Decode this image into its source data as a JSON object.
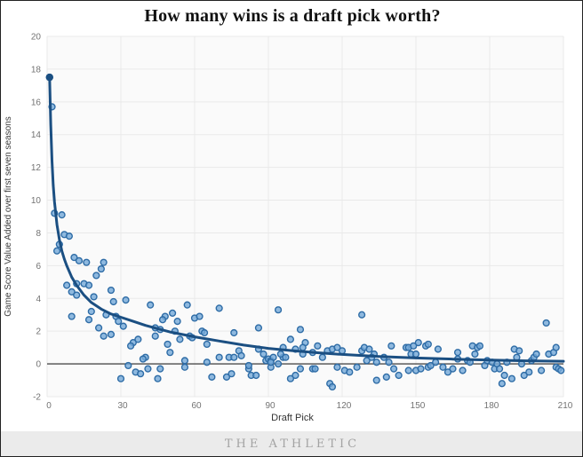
{
  "page": {
    "footer_brand": "THE ATHLETIC",
    "footer_band_color": "#ebebeb",
    "footer_text_color": "#a3a3a3"
  },
  "chart_data": {
    "type": "scatter",
    "title": "How many wins is a draft pick worth?",
    "xlabel": "Draft Pick",
    "ylabel": "Game Score Value Added over first seven seasons",
    "xlim": [
      0,
      210
    ],
    "ylim": [
      -2,
      20
    ],
    "x_ticks": [
      0,
      30,
      60,
      90,
      120,
      150,
      180,
      210
    ],
    "y_ticks": [
      20,
      18,
      16,
      14,
      12,
      10,
      8,
      6,
      4,
      2,
      0,
      -2
    ],
    "grid": true,
    "legend": "none",
    "zero_line": 0,
    "colors": {
      "point_fill": "#74a9d8",
      "point_stroke": "#2e6ca6",
      "trend": "#1b4f82",
      "zero_line": "#4d4d4d",
      "grid": "#e9e9e9",
      "plot_bg": "#fafafa",
      "tick_label": "#737373"
    },
    "points": [
      [
        1,
        17.5
      ],
      [
        2,
        15.7
      ],
      [
        3,
        9.2
      ],
      [
        6,
        9.1
      ],
      [
        7,
        7.9
      ],
      [
        9,
        7.8
      ],
      [
        5,
        7.3
      ],
      [
        4,
        6.9
      ],
      [
        11,
        6.5
      ],
      [
        13,
        6.3
      ],
      [
        16,
        6.2
      ],
      [
        23,
        6.2
      ],
      [
        22,
        5.8
      ],
      [
        20,
        5.4
      ],
      [
        12,
        4.9
      ],
      [
        8,
        4.8
      ],
      [
        15,
        4.9
      ],
      [
        17,
        4.8
      ],
      [
        10,
        4.4
      ],
      [
        12,
        4.2
      ],
      [
        19,
        4.1
      ],
      [
        26,
        4.5
      ],
      [
        32,
        3.9
      ],
      [
        27,
        3.8
      ],
      [
        18,
        3.2
      ],
      [
        28,
        2.9
      ],
      [
        29,
        2.6
      ],
      [
        10,
        2.9
      ],
      [
        17,
        2.7
      ],
      [
        24,
        3.0
      ],
      [
        31,
        2.3
      ],
      [
        21,
        2.2
      ],
      [
        23,
        1.7
      ],
      [
        26,
        1.8
      ],
      [
        35,
        1.3
      ],
      [
        37,
        1.5
      ],
      [
        34,
        1.1
      ],
      [
        40,
        0.4
      ],
      [
        33,
        -0.1
      ],
      [
        36,
        -0.5
      ],
      [
        38,
        -0.6
      ],
      [
        30,
        -0.9
      ],
      [
        42,
        3.6
      ],
      [
        44,
        1.7
      ],
      [
        48,
        2.9
      ],
      [
        51,
        3.1
      ],
      [
        47,
        2.7
      ],
      [
        53,
        2.6
      ],
      [
        57,
        3.6
      ],
      [
        60,
        2.8
      ],
      [
        62,
        2.9
      ],
      [
        44,
        2.2
      ],
      [
        46,
        2.1
      ],
      [
        52,
        2.0
      ],
      [
        54,
        1.5
      ],
      [
        58,
        1.7
      ],
      [
        59,
        1.6
      ],
      [
        63,
        2.0
      ],
      [
        64,
        1.9
      ],
      [
        65,
        1.2
      ],
      [
        50,
        0.7
      ],
      [
        49,
        1.2
      ],
      [
        39,
        0.3
      ],
      [
        41,
        -0.3
      ],
      [
        46,
        -0.3
      ],
      [
        45,
        -0.9
      ],
      [
        56,
        0.2
      ],
      [
        56,
        -0.2
      ],
      [
        67,
        -0.8
      ],
      [
        65,
        0.1
      ],
      [
        70,
        3.4
      ],
      [
        70,
        0.4
      ],
      [
        73,
        -0.8
      ],
      [
        74,
        0.4
      ],
      [
        75,
        -0.6
      ],
      [
        76,
        0.4
      ],
      [
        76,
        1.9
      ],
      [
        78,
        0.8
      ],
      [
        79,
        0.5
      ],
      [
        82,
        -0.3
      ],
      [
        83,
        -0.7
      ],
      [
        85,
        -0.7
      ],
      [
        86,
        0.9
      ],
      [
        88,
        0.6
      ],
      [
        82,
        -0.1
      ],
      [
        86,
        2.2
      ],
      [
        89,
        0.2
      ],
      [
        90,
        0.3
      ],
      [
        91,
        0.2
      ],
      [
        91,
        -0.2
      ],
      [
        94,
        3.3
      ],
      [
        96,
        0.4
      ],
      [
        103,
        2.1
      ],
      [
        128,
        3.0
      ],
      [
        99,
        1.5
      ],
      [
        105,
        1.3
      ],
      [
        104,
        1.0
      ],
      [
        96,
        1.0
      ],
      [
        101,
        0.9
      ],
      [
        110,
        1.1
      ],
      [
        108,
        0.7
      ],
      [
        104,
        0.6
      ],
      [
        95,
        0.6
      ],
      [
        92,
        0.4
      ],
      [
        97,
        0.4
      ],
      [
        91,
        0.1
      ],
      [
        94,
        0.0
      ],
      [
        103,
        -0.3
      ],
      [
        101,
        -0.7
      ],
      [
        99,
        -0.9
      ],
      [
        108,
        -0.3
      ],
      [
        109,
        -0.3
      ],
      [
        112,
        0.4
      ],
      [
        114,
        0.8
      ],
      [
        116,
        0.9
      ],
      [
        118,
        1.0
      ],
      [
        120,
        0.8
      ],
      [
        118,
        -0.2
      ],
      [
        115,
        -1.2
      ],
      [
        116,
        -1.4
      ],
      [
        121,
        -0.4
      ],
      [
        123,
        -0.5
      ],
      [
        126,
        -0.2
      ],
      [
        128,
        0.8
      ],
      [
        129,
        1.0
      ],
      [
        131,
        0.9
      ],
      [
        133,
        0.6
      ],
      [
        132,
        0.4
      ],
      [
        130,
        0.2
      ],
      [
        134,
        0.1
      ],
      [
        137,
        0.4
      ],
      [
        140,
        1.1
      ],
      [
        139,
        0.1
      ],
      [
        141,
        -0.3
      ],
      [
        138,
        -0.8
      ],
      [
        134,
        -1.0
      ],
      [
        143,
        -0.7
      ],
      [
        146,
        1.0
      ],
      [
        147,
        1.0
      ],
      [
        148,
        0.6
      ],
      [
        150,
        -0.4
      ],
      [
        149,
        1.1
      ],
      [
        151,
        1.3
      ],
      [
        154,
        1.1
      ],
      [
        155,
        1.2
      ],
      [
        159,
        0.9
      ],
      [
        150,
        0.6
      ],
      [
        147,
        -0.4
      ],
      [
        152,
        -0.3
      ],
      [
        155,
        -0.2
      ],
      [
        156,
        -0.1
      ],
      [
        158,
        0.1
      ],
      [
        161,
        -0.2
      ],
      [
        163,
        -0.5
      ],
      [
        165,
        -0.3
      ],
      [
        167,
        0.7
      ],
      [
        167,
        0.3
      ],
      [
        169,
        -0.4
      ],
      [
        171,
        0.2
      ],
      [
        172,
        0.1
      ],
      [
        173,
        1.1
      ],
      [
        175,
        1.0
      ],
      [
        176,
        1.1
      ],
      [
        174,
        0.6
      ],
      [
        178,
        -0.1
      ],
      [
        179,
        0.2
      ],
      [
        181,
        0.1
      ],
      [
        182,
        -0.3
      ],
      [
        183,
        0.0
      ],
      [
        184,
        -0.3
      ],
      [
        185,
        -1.2
      ],
      [
        186,
        -0.7
      ],
      [
        187,
        0.1
      ],
      [
        189,
        -0.9
      ],
      [
        190,
        0.9
      ],
      [
        192,
        0.8
      ],
      [
        191,
        0.4
      ],
      [
        193,
        0.0
      ],
      [
        194,
        -0.7
      ],
      [
        196,
        -0.5
      ],
      [
        197,
        0.2
      ],
      [
        198,
        0.4
      ],
      [
        199,
        0.6
      ],
      [
        201,
        -0.4
      ],
      [
        203,
        2.5
      ],
      [
        204,
        0.6
      ],
      [
        206,
        0.7
      ],
      [
        207,
        1.0
      ],
      [
        207,
        -0.2
      ],
      [
        208,
        -0.3
      ],
      [
        209,
        -0.4
      ]
    ],
    "trend": [
      [
        1,
        17.5
      ],
      [
        1.5,
        14.6
      ],
      [
        2,
        12.4
      ],
      [
        2.5,
        10.9
      ],
      [
        3,
        9.9
      ],
      [
        4,
        8.5
      ],
      [
        5,
        7.6
      ],
      [
        6,
        6.9
      ],
      [
        7,
        6.4
      ],
      [
        8,
        6.0
      ],
      [
        10,
        5.3
      ],
      [
        12,
        4.8
      ],
      [
        15,
        4.2
      ],
      [
        18,
        3.75
      ],
      [
        22,
        3.35
      ],
      [
        26,
        3.05
      ],
      [
        30,
        2.85
      ],
      [
        35,
        2.6
      ],
      [
        40,
        2.35
      ],
      [
        45,
        2.15
      ],
      [
        50,
        1.95
      ],
      [
        55,
        1.8
      ],
      [
        60,
        1.65
      ],
      [
        70,
        1.4
      ],
      [
        80,
        1.15
      ],
      [
        90,
        0.95
      ],
      [
        100,
        0.8
      ],
      [
        110,
        0.68
      ],
      [
        120,
        0.58
      ],
      [
        135,
        0.45
      ],
      [
        150,
        0.36
      ],
      [
        165,
        0.29
      ],
      [
        180,
        0.24
      ],
      [
        195,
        0.19
      ],
      [
        210,
        0.16
      ]
    ]
  }
}
